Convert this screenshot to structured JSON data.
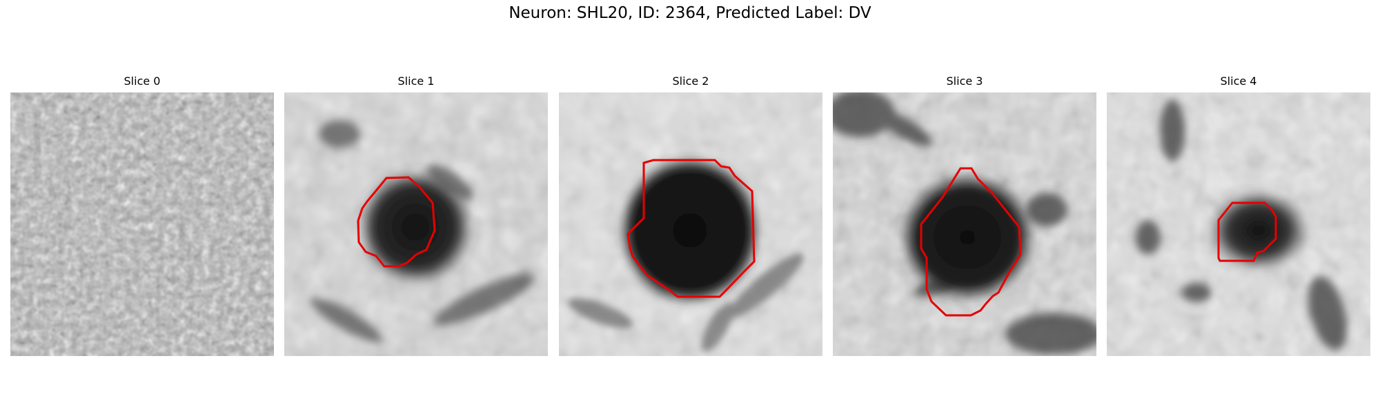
{
  "figure": {
    "title": "Neuron: SHL20, ID: 2364, Predicted Label: DV",
    "contour_color": "#e60000"
  },
  "panels": [
    {
      "title": "Slice 0",
      "has_contour": false
    },
    {
      "title": "Slice 1",
      "has_contour": true
    },
    {
      "title": "Slice 2",
      "has_contour": true
    },
    {
      "title": "Slice 3",
      "has_contour": true
    },
    {
      "title": "Slice 4",
      "has_contour": true
    }
  ]
}
